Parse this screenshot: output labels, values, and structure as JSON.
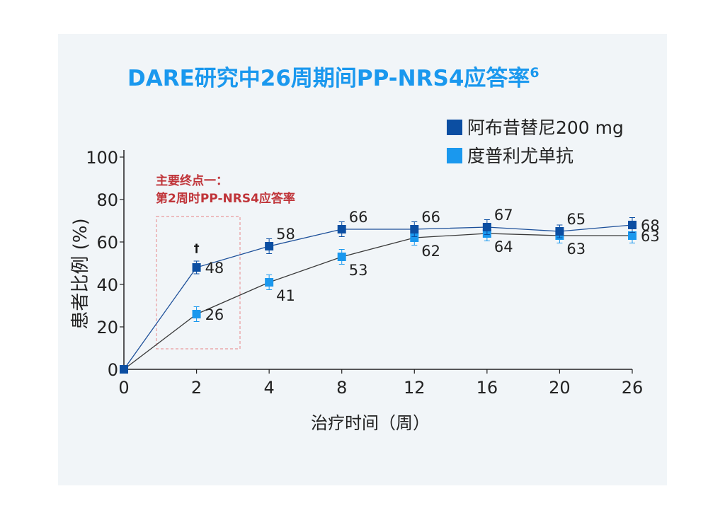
{
  "chart_data": {
    "type": "line",
    "title": "DARE研究中26周期间PP-NRS4应答率",
    "title_superscript": "6",
    "xlabel": "治疗时间（周）",
    "ylabel": "患者比例 (%)",
    "ylim": [
      0,
      100
    ],
    "yticks": [
      0,
      20,
      40,
      60,
      80,
      100
    ],
    "x": [
      0,
      2,
      4,
      8,
      12,
      16,
      20,
      26
    ],
    "series": [
      {
        "name": "阿布昔替尼200 mg",
        "color": "#0b4ea2",
        "values": [
          0,
          48,
          58,
          66,
          66,
          67,
          65,
          68
        ],
        "labels": [
          "",
          "48",
          "58",
          "66",
          "66",
          "67",
          "65",
          "68"
        ],
        "error": [
          0,
          3,
          3.5,
          3.5,
          3.5,
          3.5,
          3,
          3.5
        ]
      },
      {
        "name": "度普利尤单抗",
        "color": "#1a98ee",
        "values": [
          0,
          26,
          41,
          53,
          62,
          64,
          63,
          63
        ],
        "labels": [
          "",
          "26",
          "41",
          "53",
          "62",
          "64",
          "63",
          "63"
        ],
        "error": [
          0,
          3.5,
          3.5,
          3.5,
          3.5,
          3.5,
          3.5,
          3.5
        ]
      }
    ],
    "legend_position": "top-right",
    "annotation": {
      "line1": "主要终点一：",
      "line2": "第2周时PP-NRS4应答率",
      "color": "#c0353a"
    },
    "marker_symbol": "†",
    "grid": false
  }
}
